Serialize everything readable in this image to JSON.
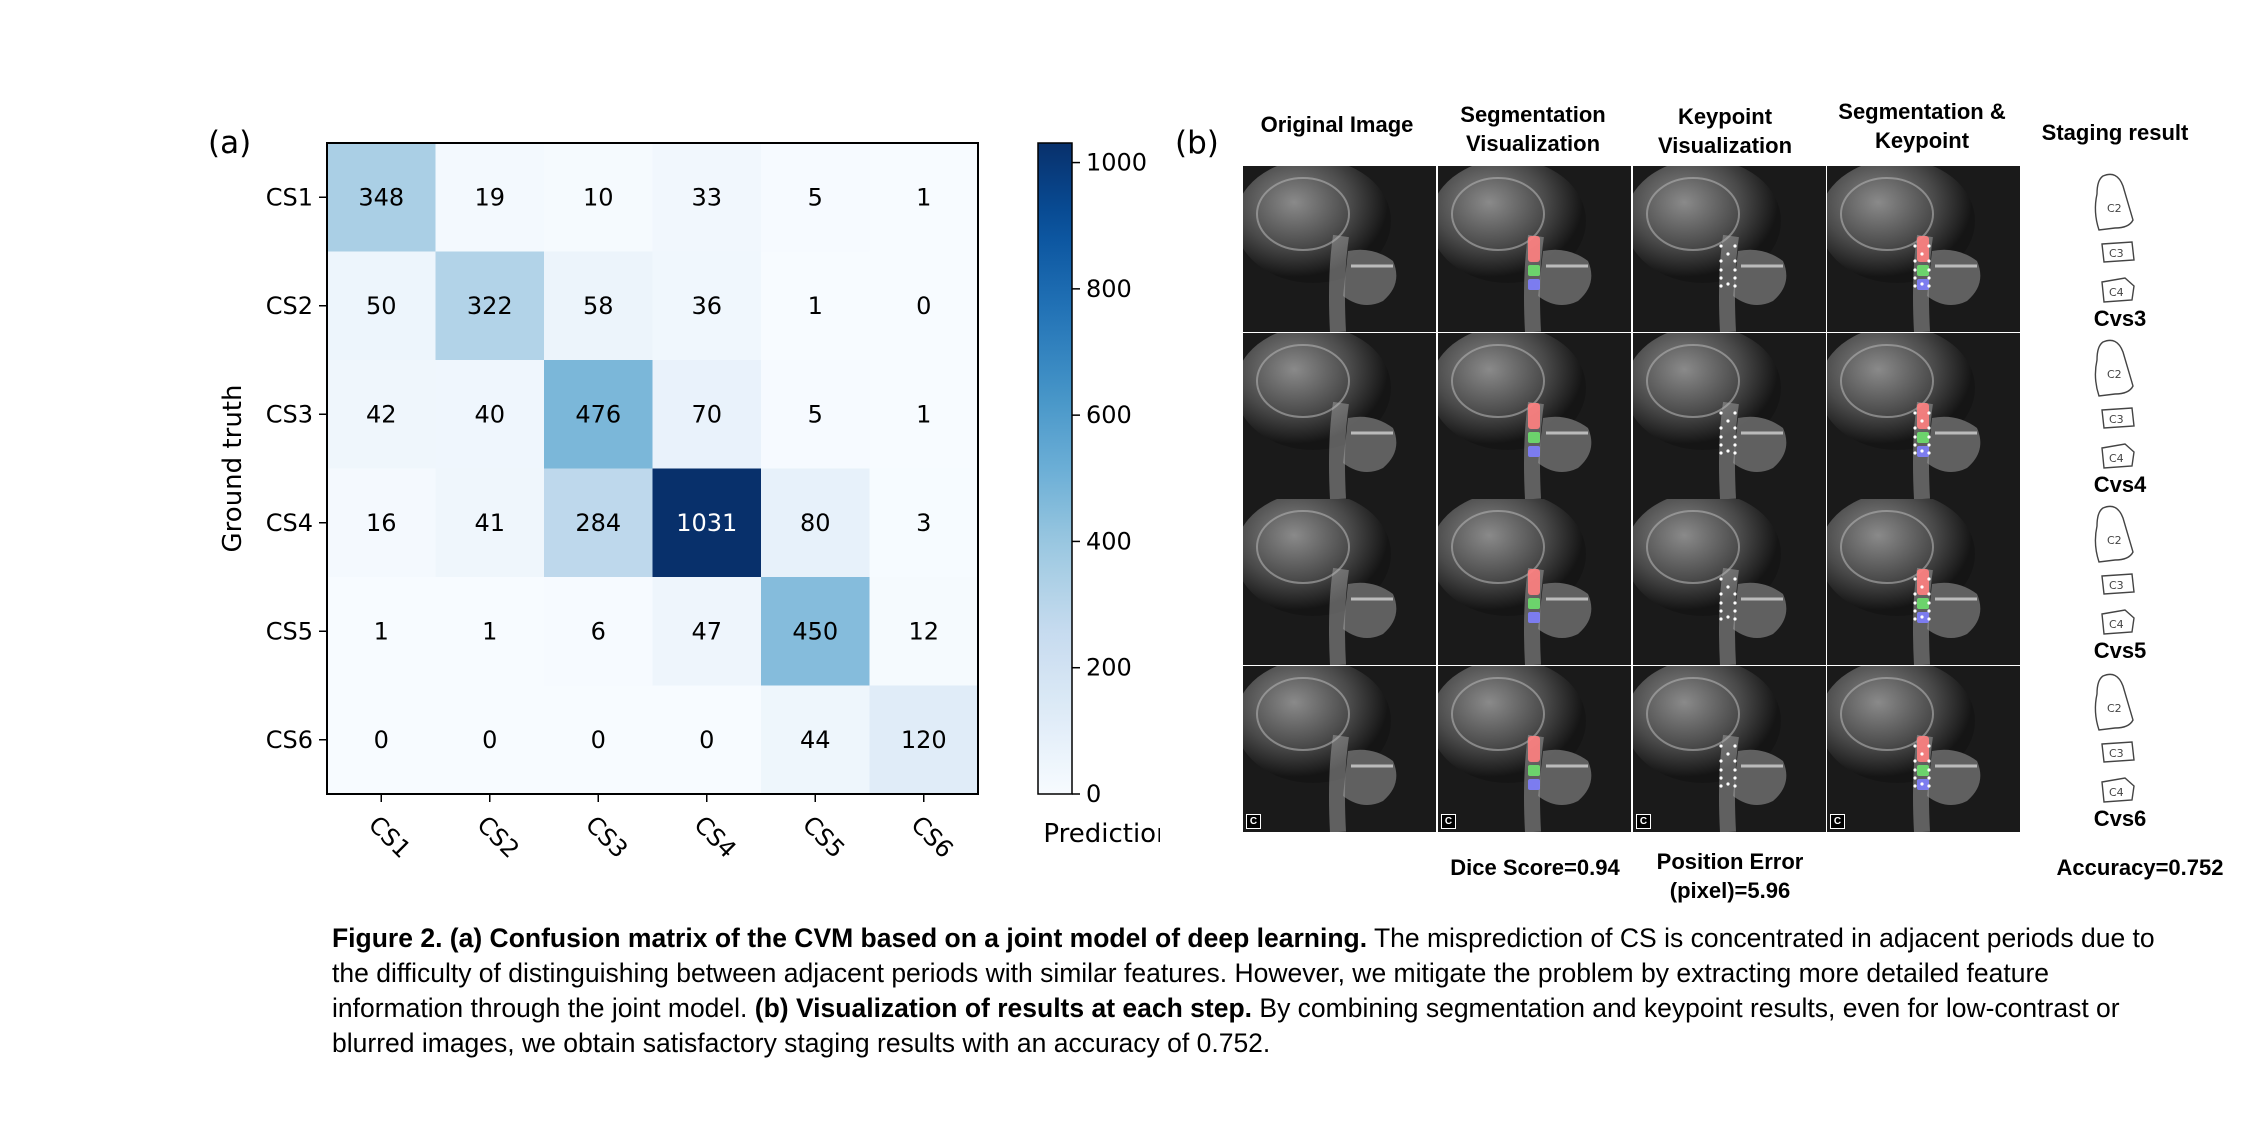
{
  "panel_a_label": "(a)",
  "panel_b_label": "(b)",
  "chart_data": {
    "type": "heatmap",
    "title": "",
    "xlabel": "Prediction",
    "ylabel": "Ground truth",
    "x_categories": [
      "CS1",
      "CS2",
      "CS3",
      "CS4",
      "CS5",
      "CS6"
    ],
    "y_categories": [
      "CS1",
      "CS2",
      "CS3",
      "CS4",
      "CS5",
      "CS6"
    ],
    "values": [
      [
        348,
        19,
        10,
        33,
        5,
        1
      ],
      [
        50,
        322,
        58,
        36,
        1,
        0
      ],
      [
        42,
        40,
        476,
        70,
        5,
        1
      ],
      [
        16,
        41,
        284,
        1031,
        80,
        3
      ],
      [
        1,
        1,
        6,
        47,
        450,
        12
      ],
      [
        0,
        0,
        0,
        0,
        44,
        120
      ]
    ],
    "colormap": "Blues",
    "colorbar_range": [
      0,
      1031
    ],
    "colorbar_ticks": [
      0,
      200,
      400,
      600,
      800,
      1000
    ],
    "colors": {
      "low": "#f7fbff",
      "high": "#08306b"
    }
  },
  "panel_b": {
    "columns": [
      "Original Image",
      "Segmentation Visualization",
      "Keypoint Visualization",
      "Segmentation & Keypoint",
      "Staging result"
    ],
    "column_lines": [
      [
        "Original Image"
      ],
      [
        "Segmentation",
        "Visualization"
      ],
      [
        "Keypoint",
        "Visualization"
      ],
      [
        "Segmentation &",
        "Keypoint"
      ],
      [
        "Staging result"
      ]
    ],
    "vertebra_labels": [
      "C2",
      "C3",
      "C4"
    ],
    "stages": [
      "Cvs3",
      "Cvs4",
      "Cvs5",
      "Cvs6"
    ],
    "corner_mark": "C",
    "metrics": {
      "dice": "Dice Score=0.94",
      "position_line1": "Position Error",
      "position_line2": "(pixel)=5.96",
      "accuracy": "Accuracy=0.752"
    },
    "overlay_colors": {
      "c2": "#ff7f7f",
      "c3": "#6ee06e",
      "c4": "#7f7fff",
      "keypoint": "#ffffff"
    }
  },
  "caption": {
    "bold_a": "Figure 2. (a) Confusion matrix of the CVM based on a joint model of deep learning.",
    "text_a": " The misprediction of CS is concentrated in adjacent periods due to the difficulty of distinguishing between adjacent periods with similar features. However, we mitigate the problem by extracting more detailed feature information through the joint model. ",
    "bold_b": "(b) Visualization of results at each step.",
    "text_b": " By combining segmentation and keypoint results, even for low-contrast or blurred images, we obtain satisfactory staging results with an accuracy of 0.752."
  }
}
